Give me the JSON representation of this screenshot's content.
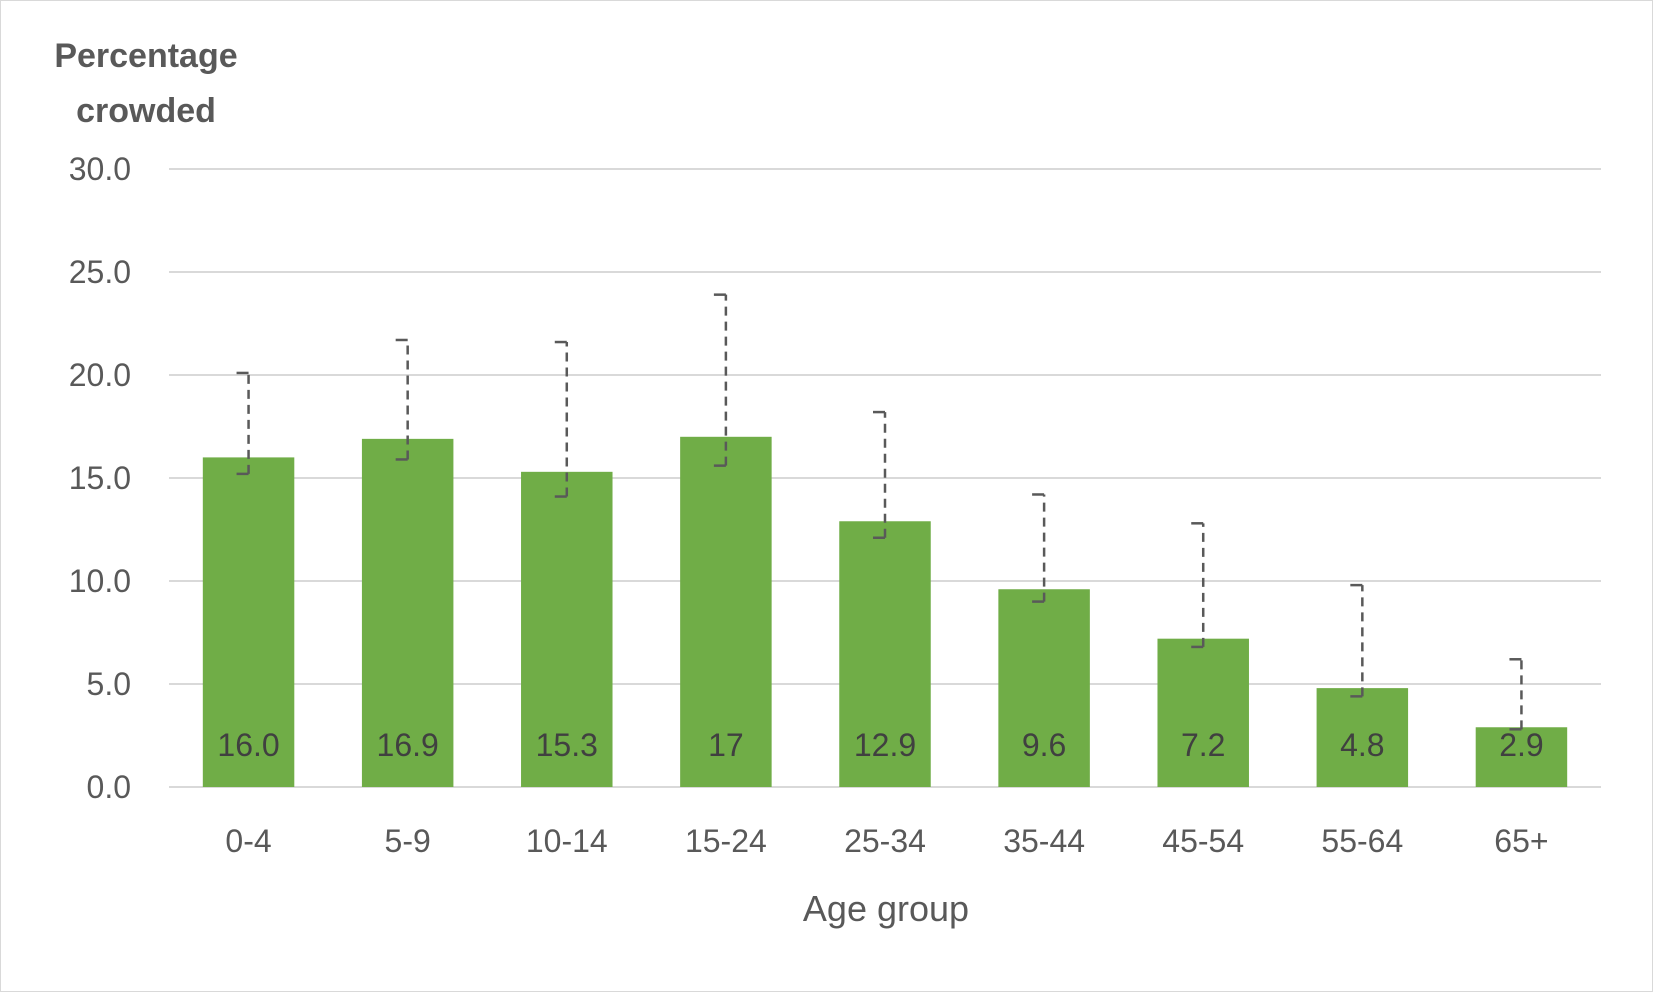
{
  "chart_data": {
    "type": "bar",
    "ylabel_lines": [
      "Percentage",
      "crowded"
    ],
    "xlabel": "Age group",
    "categories": [
      "0-4",
      "5-9",
      "10-14",
      "15-24",
      "25-34",
      "35-44",
      "45-54",
      "55-64",
      "65+"
    ],
    "values": [
      16.0,
      16.9,
      15.3,
      17,
      12.9,
      9.6,
      7.2,
      4.8,
      2.9
    ],
    "data_labels": [
      "16.0",
      "16.9",
      "15.3",
      "17",
      "12.9",
      "9.6",
      "7.2",
      "4.8",
      "2.9"
    ],
    "error_bars": [
      {
        "low": 15.2,
        "high": 20.1
      },
      {
        "low": 15.9,
        "high": 21.7
      },
      {
        "low": 14.1,
        "high": 21.6
      },
      {
        "low": 15.6,
        "high": 23.9
      },
      {
        "low": 12.1,
        "high": 18.2
      },
      {
        "low": 9.0,
        "high": 14.2
      },
      {
        "low": 6.8,
        "high": 12.8
      },
      {
        "low": 4.4,
        "high": 9.8
      },
      {
        "low": 2.8,
        "high": 6.2
      }
    ],
    "ylim": [
      0,
      30
    ],
    "y_ticks": [
      "0.0",
      "5.0",
      "10.0",
      "15.0",
      "20.0",
      "25.0",
      "30.0"
    ],
    "y_tick_values": [
      0,
      5,
      10,
      15,
      20,
      25,
      30
    ],
    "grid": true,
    "legend": "none",
    "colors": {
      "bar": "#70ad47",
      "gridline": "#d9d9d9",
      "text": "#595959",
      "error_bar": "#595959"
    }
  }
}
